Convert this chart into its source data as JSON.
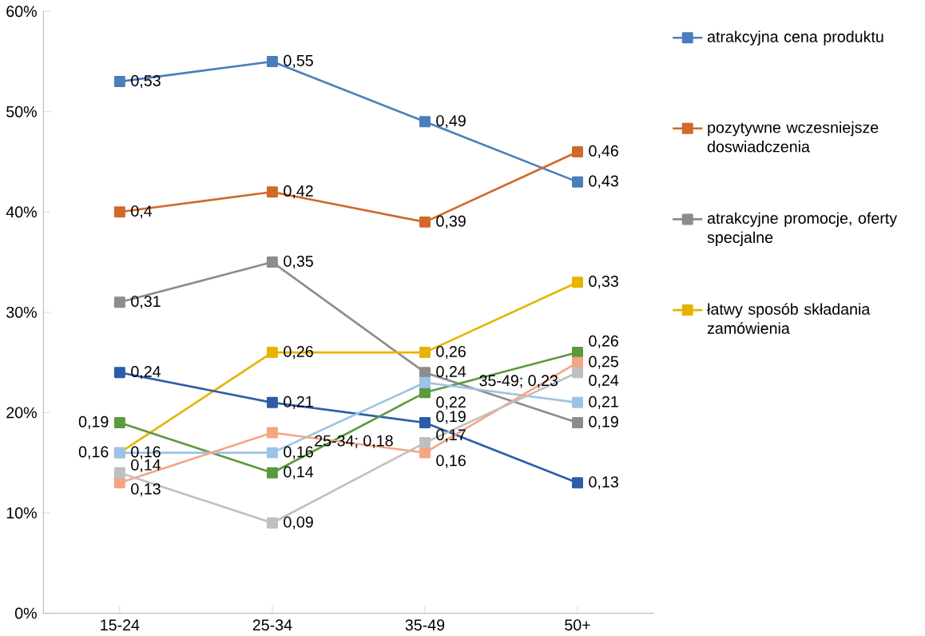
{
  "chart_data": {
    "type": "line",
    "categories": [
      "15-24",
      "25-34",
      "35-49",
      "50+"
    ],
    "series": [
      {
        "name": "atrakcyjna cena produktu",
        "color": "#4a7ebb",
        "values": [
          0.53,
          0.55,
          0.49,
          0.43
        ],
        "value_labels": [
          "0,53",
          "0,55",
          "0,49",
          "0,43"
        ]
      },
      {
        "name": "pozytywne wczesniejsze doswiadczenia",
        "color": "#d0692a",
        "values": [
          0.4,
          0.42,
          0.39,
          0.46
        ],
        "value_labels": [
          "0,4",
          "0,42",
          "0,39",
          "0,46"
        ]
      },
      {
        "name": "atrakcyjne promocje, oferty specjalne",
        "color": "#8c8c8c",
        "values": [
          0.31,
          0.35,
          0.24,
          0.19
        ],
        "value_labels": [
          "0,31",
          "0,35",
          "0,24",
          "0,19"
        ]
      },
      {
        "name": "łatwy sposób składania zamówienia",
        "color": "#e6b400",
        "values": [
          0.16,
          0.26,
          0.26,
          0.33
        ],
        "value_labels": [
          "0,16",
          "0,26",
          "0,26",
          "0,33"
        ]
      },
      {
        "color": "#2e5ca8",
        "values": [
          0.24,
          0.21,
          0.19,
          0.13
        ],
        "value_labels": [
          "0,24",
          "0,21",
          "0,19",
          "0,13"
        ]
      },
      {
        "color": "#5b9a3c",
        "values": [
          0.19,
          0.14,
          0.22,
          0.26
        ],
        "value_labels": [
          "0,19",
          "0,14",
          "0,22",
          "0,26"
        ]
      },
      {
        "color": "#9dc3e6",
        "values": [
          0.16,
          0.16,
          0.23,
          0.21
        ],
        "value_labels": [
          "0,16",
          "0,16",
          null,
          "0,21"
        ]
      },
      {
        "color": "#f4a582",
        "values": [
          0.13,
          0.18,
          0.16,
          0.25
        ],
        "value_labels": [
          "0,13",
          null,
          "0,16",
          "0,25"
        ]
      },
      {
        "color": "#bfbfbf",
        "values": [
          0.14,
          0.09,
          0.17,
          0.24
        ],
        "value_labels": [
          "0,14",
          "0,09",
          "0,17",
          "0,24"
        ]
      }
    ],
    "annotations": [
      "25-34; 0,18",
      "35-49; 0,23"
    ],
    "ylim": [
      0,
      0.6
    ],
    "yticks": [
      {
        "value": 0,
        "label": "0%"
      },
      {
        "value": 0.1,
        "label": "10%"
      },
      {
        "value": 0.2,
        "label": "20%"
      },
      {
        "value": 0.3,
        "label": "30%"
      },
      {
        "value": 0.4,
        "label": "40%"
      },
      {
        "value": 0.5,
        "label": "50%"
      },
      {
        "value": 0.6,
        "label": "60%"
      }
    ],
    "grid": false,
    "legend": "right",
    "marker": "square",
    "line_style": "solid"
  }
}
